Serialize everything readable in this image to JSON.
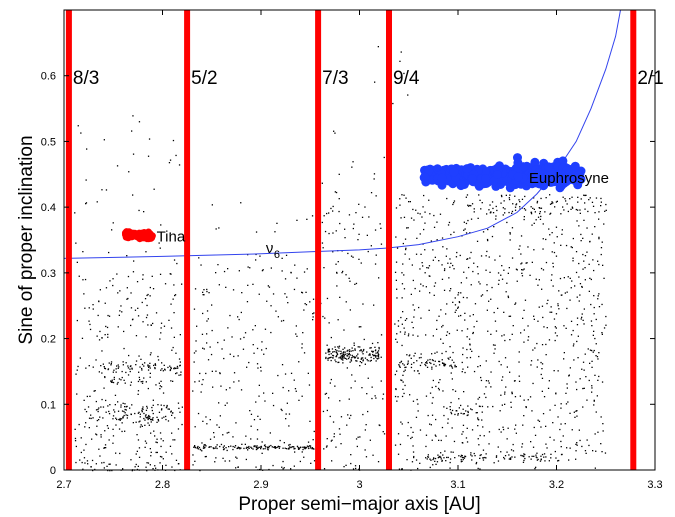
{
  "chart_data": {
    "type": "scatter",
    "xlabel": "Proper semi−major axis [AU]",
    "ylabel": "Sine of proper inclination",
    "xlim": [
      2.7,
      3.3
    ],
    "ylim": [
      0,
      0.7
    ],
    "xticks": [
      "2.7",
      "2.8",
      "2.9",
      "3",
      "3.1",
      "3.2",
      "3.3"
    ],
    "yticks": [
      "0",
      "0.1",
      "0.2",
      "0.3",
      "0.4",
      "0.5",
      "0.6"
    ],
    "grid": false,
    "colors": {
      "resonance": "#ff0000",
      "tina": "#ff0000",
      "euphrosyne": "#1f3fff",
      "nu6": "#3344ee",
      "background": "#000000"
    },
    "resonances": [
      {
        "label": "8/3",
        "a": 2.705
      },
      {
        "label": "5/2",
        "a": 2.825
      },
      {
        "label": "7/3",
        "a": 2.958
      },
      {
        "label": "9/4",
        "a": 3.03
      },
      {
        "label": "2/1",
        "a": 3.278
      }
    ],
    "secular_resonance": {
      "label": "ν",
      "subscript": "6",
      "label_at": [
        2.905,
        0.33
      ],
      "points": [
        [
          2.7,
          0.322
        ],
        [
          2.8,
          0.325
        ],
        [
          2.9,
          0.329
        ],
        [
          2.95,
          0.332
        ],
        [
          3.0,
          0.335
        ],
        [
          3.03,
          0.338
        ],
        [
          3.06,
          0.343
        ],
        [
          3.1,
          0.355
        ],
        [
          3.13,
          0.368
        ],
        [
          3.16,
          0.392
        ],
        [
          3.18,
          0.42
        ],
        [
          3.2,
          0.455
        ],
        [
          3.22,
          0.5
        ],
        [
          3.235,
          0.55
        ],
        [
          3.25,
          0.61
        ],
        [
          3.26,
          0.66
        ],
        [
          3.265,
          0.7
        ]
      ]
    },
    "families": [
      {
        "name": "Tina",
        "a_range": [
          2.762,
          2.79
        ],
        "sini_center": 0.357,
        "label_at": [
          2.794,
          0.348
        ]
      },
      {
        "name": "Euphrosyne",
        "a_range": [
          3.065,
          3.225
        ],
        "sini_center": 0.447,
        "label_at": [
          3.172,
          0.437
        ]
      }
    ],
    "background_asteroids": {
      "description_clusters": [
        {
          "a": [
            2.71,
            2.82
          ],
          "sini": [
            0.0,
            0.56
          ]
        },
        {
          "a": [
            2.83,
            2.955
          ],
          "sini": [
            0.0,
            0.35
          ]
        },
        {
          "a": [
            2.96,
            3.025
          ],
          "sini": [
            0.0,
            0.52
          ]
        },
        {
          "a": [
            3.035,
            3.25
          ],
          "sini": [
            0.0,
            0.42
          ]
        }
      ]
    }
  }
}
